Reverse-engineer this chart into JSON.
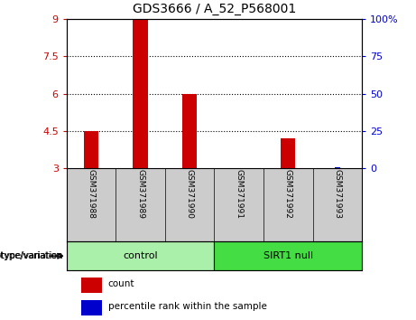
{
  "title": "GDS3666 / A_52_P568001",
  "samples": [
    "GSM371988",
    "GSM371989",
    "GSM371990",
    "GSM371991",
    "GSM371992",
    "GSM371993"
  ],
  "count_values": [
    4.5,
    9.0,
    6.0,
    3.0,
    4.2,
    3.0
  ],
  "percentile_values": [
    3,
    3,
    3,
    3,
    3,
    3.02
  ],
  "ylim_left": [
    3,
    9
  ],
  "ylim_right": [
    0,
    100
  ],
  "yticks_left": [
    3,
    4.5,
    6,
    7.5,
    9
  ],
  "ytick_labels_left": [
    "3",
    "4.5",
    "6",
    "7.5",
    "9"
  ],
  "yticks_right": [
    0,
    25,
    50,
    75,
    100
  ],
  "ytick_labels_right": [
    "0",
    "25",
    "50",
    "75",
    "100%"
  ],
  "hlines": [
    4.5,
    6.0,
    7.5
  ],
  "bar_color": "#cc0000",
  "percentile_color": "#0000cc",
  "bar_width": 0.3,
  "percentile_bar_width": 0.1,
  "groups": [
    {
      "label": "control",
      "indices": [
        0,
        1,
        2
      ],
      "color": "#aaf0aa"
    },
    {
      "label": "SIRT1 null",
      "indices": [
        3,
        4,
        5
      ],
      "color": "#44dd44"
    }
  ],
  "group_label": "genotype/variation",
  "legend_count_label": "count",
  "legend_percentile_label": "percentile rank within the sample",
  "sample_bg_color": "#cccccc",
  "plot_bg": "#ffffff",
  "left_tick_color": "#cc0000",
  "right_tick_color": "#0000cc"
}
